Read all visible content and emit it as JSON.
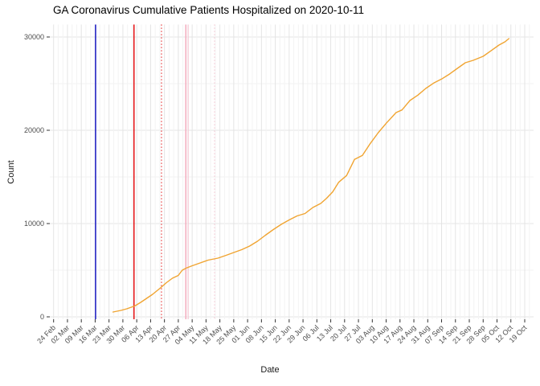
{
  "chart_data": {
    "type": "line",
    "title": "GA Coronavirus Cumulative Patients Hospitalized on 2020-10-11",
    "xlabel": "Date",
    "ylabel": "Count",
    "legend": "none",
    "grid": "on",
    "x_axis": {
      "start_date": "2020-02-24",
      "tick_interval_days": 7,
      "tick_labels": [
        "24 Feb",
        "02 Mar",
        "09 Mar",
        "16 Mar",
        "23 Mar",
        "30 Mar",
        "06 Apr",
        "13 Apr",
        "20 Apr",
        "27 Apr",
        "04 May",
        "11 May",
        "18 May",
        "25 May",
        "01 Jun",
        "08 Jun",
        "15 Jun",
        "22 Jun",
        "29 Jun",
        "06 Jul",
        "13 Jul",
        "20 Jul",
        "27 Jul",
        "03 Aug",
        "10 Aug",
        "17 Aug",
        "24 Aug",
        "31 Aug",
        "07 Sep",
        "14 Sep",
        "21 Sep",
        "28 Sep",
        "05 Oct",
        "12 Oct",
        "19 Oct"
      ]
    },
    "y_axis": {
      "tick_values": [
        0,
        10000,
        20000,
        30000
      ],
      "tick_labels": [
        "0",
        "10000",
        "20000",
        "30000"
      ],
      "minor_tick_values": [
        5000,
        15000,
        25000
      ],
      "ylim": [
        0,
        31300
      ]
    },
    "series": [
      {
        "name": "cumulative-patients-hospitalized",
        "color": "#F0A431",
        "points_days_since_start_and_count": [
          [
            30,
            520
          ],
          [
            34,
            690
          ],
          [
            37,
            860
          ],
          [
            41,
            1160
          ],
          [
            44,
            1550
          ],
          [
            47,
            1980
          ],
          [
            50,
            2410
          ],
          [
            54,
            3100
          ],
          [
            57,
            3660
          ],
          [
            60,
            4140
          ],
          [
            63,
            4440
          ],
          [
            65,
            5000
          ],
          [
            67,
            5220
          ],
          [
            70,
            5470
          ],
          [
            74,
            5780
          ],
          [
            78,
            6080
          ],
          [
            83,
            6290
          ],
          [
            87,
            6590
          ],
          [
            91,
            6900
          ],
          [
            95,
            7200
          ],
          [
            99,
            7590
          ],
          [
            103,
            8100
          ],
          [
            107,
            8750
          ],
          [
            111,
            9350
          ],
          [
            115,
            9910
          ],
          [
            119,
            10390
          ],
          [
            123,
            10820
          ],
          [
            127,
            11080
          ],
          [
            131,
            11720
          ],
          [
            135,
            12160
          ],
          [
            138,
            12720
          ],
          [
            141,
            13400
          ],
          [
            144,
            14420
          ],
          [
            148,
            15150
          ],
          [
            152,
            16870
          ],
          [
            156,
            17300
          ],
          [
            160,
            18590
          ],
          [
            164,
            19740
          ],
          [
            168,
            20750
          ],
          [
            173,
            21900
          ],
          [
            176,
            22180
          ],
          [
            180,
            23190
          ],
          [
            184,
            23770
          ],
          [
            188,
            24480
          ],
          [
            192,
            25060
          ],
          [
            196,
            25490
          ],
          [
            200,
            26030
          ],
          [
            204,
            26640
          ],
          [
            208,
            27240
          ],
          [
            212,
            27500
          ],
          [
            217,
            27930
          ],
          [
            221,
            28530
          ],
          [
            225,
            29140
          ],
          [
            228,
            29480
          ],
          [
            230,
            29830
          ]
        ]
      }
    ],
    "event_vlines": [
      {
        "date": "2020-03-16",
        "day": 21.2,
        "color": "#2424C4",
        "style": "solid",
        "width": 1.6
      },
      {
        "date": "2020-04-04",
        "day": 40.6,
        "color": "#E41A1C",
        "style": "solid",
        "width": 1.6
      },
      {
        "date": "2020-04-18",
        "day": 54.5,
        "color": "#E41A1C",
        "style": "dotted",
        "width": 1.2
      },
      {
        "date": "2020-04-30",
        "day": 66.8,
        "color": "#F4AFC0",
        "style": "solid",
        "width": 1.6
      },
      {
        "date": "2020-05-02",
        "day": 68.0,
        "color": "#F6C3D0",
        "style": "solid",
        "width": 1.0
      },
      {
        "date": "2020-05-15",
        "day": 81.3,
        "color": "#F6C3D0",
        "style": "dotted",
        "width": 1.2
      }
    ],
    "style": {
      "background": "#FFFFFF",
      "major_grid_color": "#E4E4E4",
      "minor_grid_color": "#F3F3F3",
      "axis_text_color": "#4D4D4D",
      "axis_title_color": "#1A1A1A",
      "tick_mark_color": "#333333",
      "title_color": "#000000"
    }
  }
}
